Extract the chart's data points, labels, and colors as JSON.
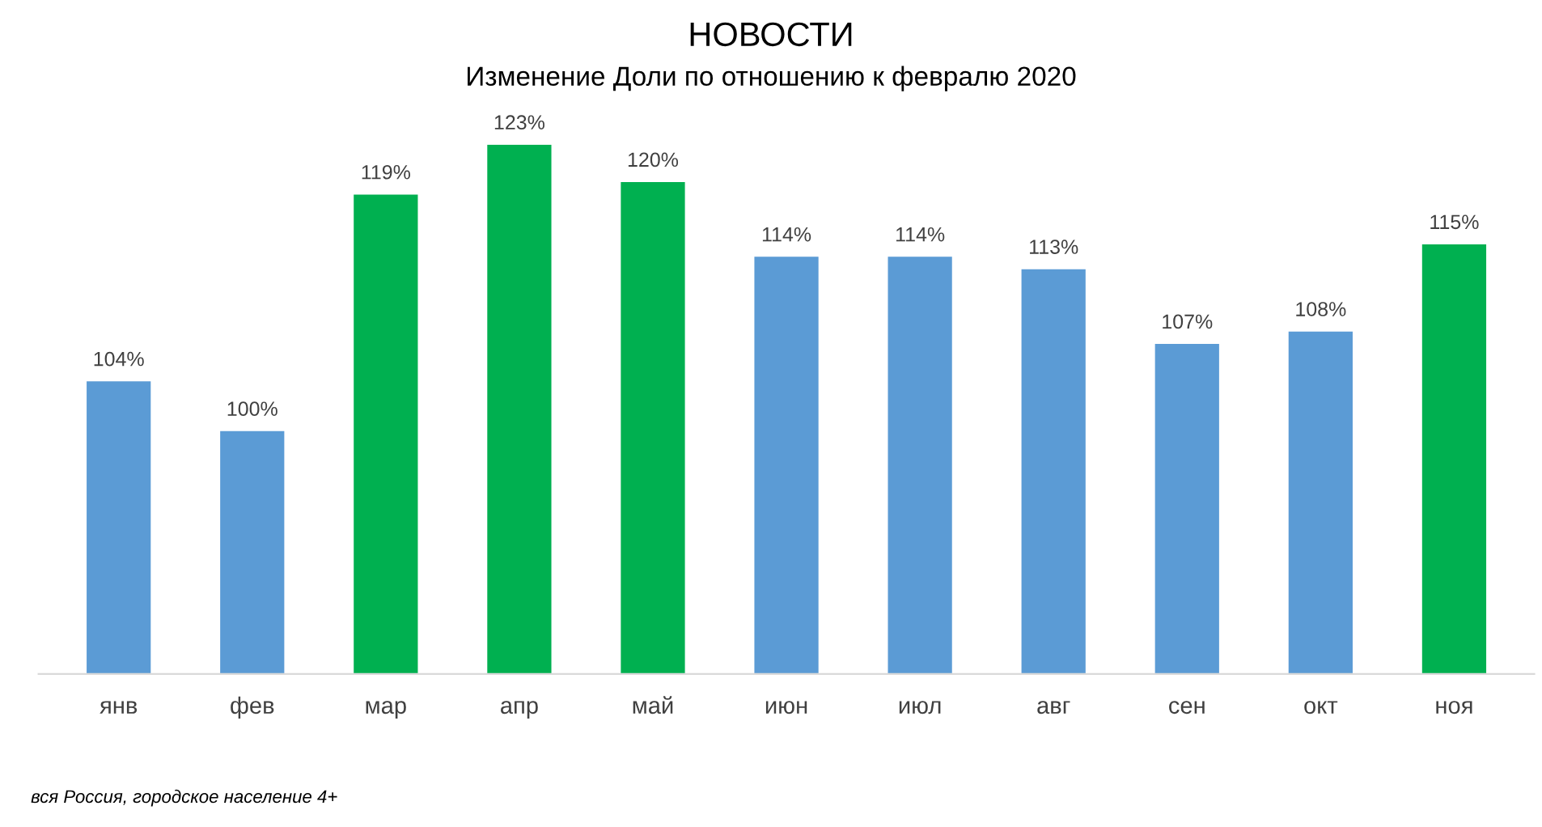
{
  "chart_data": {
    "type": "bar",
    "title": "НОВОСТИ",
    "subtitle": "Изменение Доли по отношению к февралю 2020",
    "categories": [
      "янв",
      "фев",
      "мар",
      "апр",
      "май",
      "июн",
      "июл",
      "авг",
      "сен",
      "окт",
      "ноя"
    ],
    "values": [
      104,
      100,
      119,
      123,
      120,
      114,
      114,
      113,
      107,
      108,
      115
    ],
    "value_labels": [
      "104%",
      "100%",
      "119%",
      "123%",
      "120%",
      "114%",
      "114%",
      "113%",
      "107%",
      "108%",
      "115%"
    ],
    "colors": [
      "#5b9bd5",
      "#5b9bd5",
      "#00b050",
      "#00b050",
      "#00b050",
      "#5b9bd5",
      "#5b9bd5",
      "#5b9bd5",
      "#5b9bd5",
      "#5b9bd5",
      "#00b050"
    ],
    "ylim": [
      80.5,
      123
    ],
    "tick_labels": "x",
    "grid": false,
    "legend": false,
    "annotations": [
      "вся Россия, городское население 4+"
    ]
  }
}
